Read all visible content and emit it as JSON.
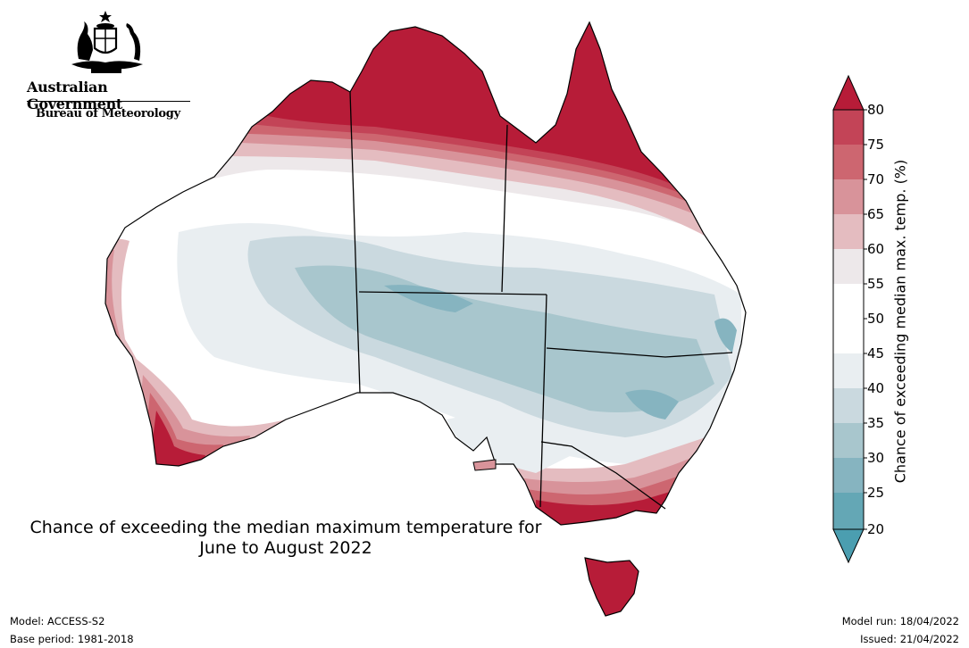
{
  "logo": {
    "government": "Australian Government",
    "bureau": "Bureau of Meteorology"
  },
  "title": {
    "line1": "Chance of exceeding the median maximum temperature for",
    "line2": "June to August 2022"
  },
  "legend": {
    "title": "Chance of exceeding median max. temp. (%)",
    "ticks": [
      "80",
      "75",
      "70",
      "65",
      "60",
      "55",
      "50",
      "45",
      "40",
      "35",
      "30",
      "25",
      "20"
    ],
    "colors": {
      "above80": "#b71c38",
      "75-80": "#c34457",
      "70-75": "#cd6670",
      "65-70": "#d8939a",
      "60-65": "#e4bcc0",
      "55-60": "#ede8ea",
      "50-55": "#ffffff",
      "45-50": "#ffffff",
      "40-45": "#e9eef1",
      "35-40": "#cad9df",
      "30-35": "#a8c6cd",
      "25-30": "#86b4c0",
      "20-25": "#64a7b5",
      "below20": "#4b9eb0"
    }
  },
  "footer": {
    "model": "Model: ACCESS-S2",
    "base_period": "Base period: 1981-2018",
    "model_run": "Model run: 18/04/2022",
    "issued": "Issued: 21/04/2022"
  }
}
